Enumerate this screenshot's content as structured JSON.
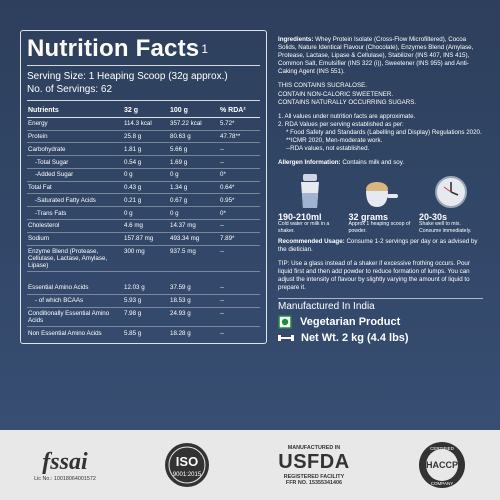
{
  "nutrition": {
    "title": "Nutrition Facts",
    "title_sup": "1",
    "serving_size": "Serving Size: 1 Heaping Scoop (32g approx.)",
    "servings": "No. of Servings: 62",
    "headers": [
      "Nutrients",
      "32 g",
      "100 g",
      "% RDA²"
    ],
    "rows": [
      {
        "name": "Energy",
        "v32": "114.3 kcal",
        "v100": "357.22 kcal",
        "rda": "5.72*"
      },
      {
        "name": "Protein",
        "v32": "25.8 g",
        "v100": "80.63 g",
        "rda": "47.78**"
      },
      {
        "name": "Carbohydrate",
        "v32": "1.81 g",
        "v100": "5.66 g",
        "rda": "--"
      },
      {
        "name": "-Total Sugar",
        "v32": "0.54 g",
        "v100": "1.69 g",
        "rda": "--"
      },
      {
        "name": "-Added Sugar",
        "v32": "0 g",
        "v100": "0 g",
        "rda": "0*"
      },
      {
        "name": "Total Fat",
        "v32": "0.43 g",
        "v100": "1.34 g",
        "rda": "0.64*"
      },
      {
        "name": "-Saturated Fatty Acids",
        "v32": "0.21 g",
        "v100": "0.67 g",
        "rda": "0.95*"
      },
      {
        "name": "-Trans Fats",
        "v32": "0 g",
        "v100": "0 g",
        "rda": "0*"
      },
      {
        "name": "Cholesterol",
        "v32": "4.6 mg",
        "v100": "14.37 mg",
        "rda": "--"
      },
      {
        "name": "Sodium",
        "v32": "157.87 mg",
        "v100": "493.34 mg",
        "rda": "7.89*"
      },
      {
        "name": "Enzyme Blend (Protease, Cellulase, Lactase, Amylase, Lipase)",
        "v32": "300 mg",
        "v100": "937.5 mg",
        "rda": "--"
      },
      {
        "name": "Essential Amino Acids",
        "v32": "12.03 g",
        "v100": "37.59 g",
        "rda": "--"
      },
      {
        "name": "- of which BCAAs",
        "v32": "5.93 g",
        "v100": "18.53 g",
        "rda": "--"
      },
      {
        "name": "Conditionally Essential Amino Acids",
        "v32": "7.98 g",
        "v100": "24.93 g",
        "rda": "--"
      },
      {
        "name": "Non Essential Amino Acids",
        "v32": "5.85 g",
        "v100": "18.28 g",
        "rda": "--"
      }
    ]
  },
  "ingredients": {
    "label": "Ingredients:",
    "text": "Whey Protein Isolate (Cross-Flow Microfiltered), Cocoa Solids, Nature Identical Flavour (Chocolate), Enzymes Blend (Amylase, Protease, Lactase, Lipase & Cellulase), Stabilizer (INS 407, INS 415), Common Salt, Emulsifier (INS 322 (i)), Sweetener (INS 955) and Anti-Caking Agent (INS 551).",
    "contains": [
      "THIS CONTAINS SUCRALOSE.",
      "CONTAIN NON-CALORIC SWEETENER.",
      "CONTAINS NATURALLY OCCURRING SUGARS."
    ]
  },
  "notes": [
    "1. All values under nutrition facts  are approximate.",
    "2. RDA Values per serving established as per:",
    "* Food Safety and Standards (Labelling and Display) Regulations 2020.",
    "**ICMR 2020, Men-moderate work.",
    "--RDA values, not established."
  ],
  "allergen": {
    "label": "Allergen Information:",
    "text": "Contains milk and soy."
  },
  "icons": [
    {
      "big": "190-210ml",
      "small": "Cold water or milk in a shaker.",
      "icon": "shaker-icon"
    },
    {
      "big": "32 grams",
      "small": "Approx 1 heaping scoop of powder.",
      "icon": "scoop-icon"
    },
    {
      "big": "20-30s",
      "small": "Shake well to mix. Consume immediately.",
      "icon": "clock-icon"
    }
  ],
  "usage": {
    "label": "Recommended Usage:",
    "text": "Consume 1-2 servings per day or as advised by the dietician.",
    "tip": "TIP: Use a glass instead of a shaker if excessive frothing occurs. Pour liquid first and then add powder to reduce formation of lumps. You can adjust the intensity of flavour by slightly varying the amount of liquid to prepare it."
  },
  "made_in": "Manufactured In India",
  "veg": "Vegetarian Product",
  "net_wt": "Net Wt. 2 kg (4.4 lbs)",
  "footer": {
    "fssai": "fssai",
    "fssai_lic": "Lic No.: 10018064001572",
    "iso_top": "ISO",
    "iso_bottom": "9001:2015",
    "usfda_top": "MANUFACTURED IN",
    "usfda": "USFDA",
    "usfda_sub": "REGISTERED FACILITY",
    "usfda_ffr": "FFR NO. 15355341406",
    "haccp": "HACCP",
    "haccp_ring_top": "CERTIFIED",
    "haccp_ring_bottom": "COMPANY"
  }
}
